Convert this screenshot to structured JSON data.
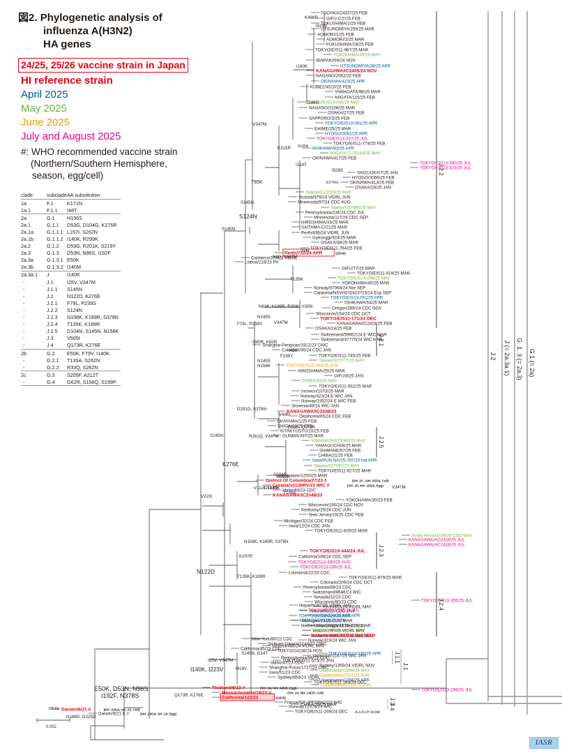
{
  "figure": {
    "title_prefix": "図2.",
    "title_lines": [
      "Phylogenetic analysis of",
      "influenza A(H3N2)",
      "HA genes"
    ]
  },
  "legend": {
    "vaccine_strain": "24/25, 25/26 vaccine strain in Japan",
    "hi_reference": "HI reference strain",
    "april": "April 2025",
    "may": "May 2025",
    "june": "June 2025",
    "july_aug": "July and August 2025",
    "who_note": [
      "#: WHO recommended vaccine strain",
      "(Northern/Southern Hemisphere,",
      "season, egg/cell)"
    ],
    "colors": {
      "red": "#e60012",
      "april": "#0050a0",
      "may": "#6cb33e",
      "june": "#f39800",
      "july_aug": "#e4007f",
      "black": "#231815"
    }
  },
  "clade_table": {
    "headers": [
      "clade",
      "subclade",
      "AA substitution"
    ],
    "rows": [
      {
        "clade": "1a",
        "subclade": "F.1",
        "aa": "K171N",
        "sep": false
      },
      {
        "clade": "1a.1",
        "subclade": "F.1.1",
        "aa": "I48T",
        "sep": false
      },
      {
        "clade": "2a",
        "subclade": "G.1",
        "aa": "H156S",
        "sep": true
      },
      {
        "clade": "2a.1",
        "subclade": "G.1.1",
        "aa": "D53G, D104G, K276R",
        "sep": false
      },
      {
        "clade": "2a.1a",
        "subclade": "G.1.1.1",
        "aa": "L157I, S262N",
        "sep": false
      },
      {
        "clade": "2a.1b",
        "subclade": "G.1.1.2",
        "aa": "I140K, R299K",
        "sep": false
      },
      {
        "clade": "2a.2",
        "subclade": "G.1.2",
        "aa": "D53G, R201K, S219Y",
        "sep": false
      },
      {
        "clade": "2a.3",
        "subclade": "G.1.3",
        "aa": "D53N, N96S, I192F",
        "sep": false
      },
      {
        "clade": "2a.3a",
        "subclade": "G.1.3.1",
        "aa": "E50K",
        "sep": false
      },
      {
        "clade": "2a.3b",
        "subclade": "G.1.3.2",
        "aa": "I140M",
        "sep": false
      },
      {
        "clade": "2a.3a.1",
        "subclade": "J",
        "aa": "I140K",
        "sep": true
      },
      {
        "clade": "-",
        "subclade": "J.1",
        "aa": "I25V, V347M",
        "sep": false
      },
      {
        "clade": "-",
        "subclade": "J.1.1",
        "aa": "S145N",
        "sep": false
      },
      {
        "clade": "-",
        "subclade": "J.2",
        "aa": "N122D, K276E",
        "sep": false
      },
      {
        "clade": "-",
        "subclade": "J.2.1",
        "aa": "F79L, P239S",
        "sep": false
      },
      {
        "clade": "-",
        "subclade": "J.2.2",
        "aa": "S124N",
        "sep": false
      },
      {
        "clade": "-",
        "subclade": "J.2.3",
        "aa": "N158K, K189R, S378N",
        "sep": false
      },
      {
        "clade": "-",
        "subclade": "J.2.4",
        "aa": "T135K, K189R",
        "sep": false
      },
      {
        "clade": "-",
        "subclade": "J.2.5",
        "aa": "D104N, S145N, N158K",
        "sep": false
      },
      {
        "clade": "-",
        "subclade": "J.3",
        "aa": "V505I",
        "sep": false
      },
      {
        "clade": "-",
        "subclade": "J.4",
        "aa": "Q173R, K276E",
        "sep": false
      },
      {
        "clade": "2b",
        "subclade": "G.2",
        "aa": "E50K, F79V, I140K",
        "sep": true
      },
      {
        "clade": "-",
        "subclade": "G.2.1",
        "aa": "T135A, S262N",
        "sep": false
      },
      {
        "clade": "-",
        "subclade": "G.2.2",
        "aa": "R33Q, S262N",
        "sep": false
      },
      {
        "clade": "2c",
        "subclade": "G.3",
        "aa": "S205F, A212T",
        "sep": true
      },
      {
        "clade": "-",
        "subclade": "G.4",
        "aa": "G62R, S156Q, S199P",
        "sep": false
      }
    ]
  },
  "tree": {
    "scale_bar": "0.002",
    "leaves": [
      {
        "label": "TOCHIGI/24327/25 FEB",
        "c": "k"
      },
      {
        "label": "GIFU-C/2/25 FEB",
        "c": "k"
      },
      {
        "label": "TOKUSHIMA/2/25 FEB",
        "c": "k"
      },
      {
        "label": "UTSUNOMIYA/259/25 MAR",
        "c": "k"
      },
      {
        "label": "AOMORI/1/25 FEB",
        "c": "k"
      },
      {
        "label": "AOMORI/2/25 MAR",
        "c": "k"
      },
      {
        "label": "FUKUSHIMA/16/25 FEB",
        "c": "k"
      },
      {
        "label": "TOKYO/EIS11-967/25 MAR",
        "c": "k"
      },
      {
        "label": "YOKOHAMA/49/25 MAY",
        "c": "may"
      },
      {
        "label": "IBARAKI/59/24 NOV",
        "c": "k"
      },
      {
        "label": "UTSUNOMIYA/38/25 APR",
        "c": "apr"
      },
      {
        "label": "KANAGAWA/IC2405/24 NOV",
        "c": "red"
      },
      {
        "label": "NAGANO/2082/25 FEB",
        "c": "k"
      },
      {
        "label": "OKINAWA/423/25 APR",
        "c": "apr"
      },
      {
        "label": "KOBE/24510/25 FEB",
        "c": "k"
      },
      {
        "label": "YAMAGATA/98/25 MAR",
        "c": "k"
      },
      {
        "label": "NIIGATA/115/25 FEB",
        "c": "k"
      },
      {
        "label": "TOKYO/EIS13-085/25 MAY",
        "c": "may"
      },
      {
        "label": "NAGANO/2108/25 MAR",
        "c": "k"
      },
      {
        "label": "OSAKA/27/25 FEB",
        "c": "k"
      },
      {
        "label": "SAPPORO/3/25 FEB",
        "c": "k"
      },
      {
        "label": "TOKYO/EIS13-081/25 APR",
        "c": "apr"
      },
      {
        "label": "EHIME/25/25 MAR",
        "c": "k"
      },
      {
        "label": "HYOGO/3061/25 APR",
        "c": "apr"
      },
      {
        "label": "TOKYO/EIS13-337/25 JUL",
        "c": "jul"
      },
      {
        "label": "TOKYO/EIS11-774/25 FEB",
        "c": "k"
      },
      {
        "label": "ISHIKAWA/83/25 APR",
        "c": "apr"
      },
      {
        "label": "NIIGATA-C/25144/25 MAY",
        "c": "may"
      },
      {
        "label": "OKINAWA/417/25 FEB",
        "c": "k"
      },
      {
        "label": "TOKYO/EIS13-380/25 JUL",
        "c": "jul"
      },
      {
        "label": "TOKYO/EIS13-323/25 JUL",
        "c": "jul"
      },
      {
        "label": "SHIZUOKA/7/25 JAN",
        "c": "k"
      },
      {
        "label": "HYOGO/3066/25 FEB",
        "c": "k"
      },
      {
        "label": "OKINAWA/413/25 FEB",
        "c": "k"
      },
      {
        "label": "OSAKA/19/25 JAN",
        "c": "k"
      },
      {
        "label": "Taiwan/C22020/25 MAY",
        "c": "may"
      },
      {
        "label": "Victoria/979/24 VIDRL JUN",
        "c": "k"
      },
      {
        "label": "Minnesota/97/24 CDC AUG",
        "c": "k"
      },
      {
        "label": "Taiwan/S27080/25 MAY",
        "c": "may"
      },
      {
        "label": "Pennsylvania/234/24 CDC JUL",
        "c": "k"
      },
      {
        "label": "Minnesota/117/24 CDC SEP",
        "c": "k"
      },
      {
        "label": "HIROSHIMA/33/25 MAR",
        "c": "k"
      },
      {
        "label": "SAITAMA-C/21/25 MAR",
        "c": "k"
      },
      {
        "label": "Perth/836/24 VIDRL JUN",
        "c": "k"
      },
      {
        "label": "Gyeonggi/924/25 MAR",
        "c": "k"
      },
      {
        "label": "OSAKA/38/25 MAR",
        "c": "k"
      },
      {
        "label": "TOKYO/EIS11-764/25 FEB",
        "c": "k"
      },
      {
        "label": "Perth/722/24 APR",
        "c": "vax",
        "note": "(25/26)"
      },
      {
        "label": "Canberra/373/23 VIDRL",
        "c": "k"
      },
      {
        "label": "Lisboa/216/23 Prt",
        "c": "k"
      },
      {
        "label": "GIFU/77/25 MAR",
        "c": "k"
      },
      {
        "label": "TOKYO/EIS11-919/25 MAR",
        "c": "k"
      },
      {
        "label": "TOKYO/EIS13-098/25 MAY",
        "c": "may"
      },
      {
        "label": "YOKOHAMA/40/25 MAR",
        "c": "k"
      },
      {
        "label": "Norway/07066/24 Nor SEP",
        "c": "k"
      },
      {
        "label": "Catalonia/NSVH102423723/24 Esp SEP",
        "c": "k"
      },
      {
        "label": "TOKYO/EIS13-051/25 APR",
        "c": "apr"
      },
      {
        "label": "ISHIKAWA/54/25 MAR",
        "c": "k"
      },
      {
        "label": "Oregon/286/24 CDC NOV",
        "c": "k"
      },
      {
        "label": "Wisconsin/154/24 CDC OCT",
        "c": "k"
      },
      {
        "label": "TOKYO/EIS11-171/24 DEC",
        "c": "red"
      },
      {
        "label": "KANAGAWA/IC2428/25 FEB",
        "c": "k"
      },
      {
        "label": "OSAKA/24/25 FEB",
        "c": "k"
      },
      {
        "label": "Switzerland/59652/24 E WIC MAR",
        "c": "k"
      },
      {
        "label": "Switzerland/47775/24 WIC MAR",
        "c": "k"
      },
      {
        "label": "Shanghai-Fengxian/1912/23 CNIC",
        "c": "k"
      },
      {
        "label": "Colorado/06/24 CDC JAN",
        "c": "k"
      },
      {
        "label": "TOKYO/EIS11-745/25 FEB",
        "c": "k"
      },
      {
        "label": "Taiwan/S27077/25 MAY",
        "c": "may"
      },
      {
        "label": "TOKYO/EIS13-254/25 JUN",
        "c": "jun"
      },
      {
        "label": "HIROSHIMA/25/25 MAR",
        "c": "k"
      },
      {
        "label": "GIFU/8/25 JAN",
        "c": "k"
      },
      {
        "label": "CHIBA/30/25 MAY",
        "c": "may"
      },
      {
        "label": "TOKYO/EIS11-932/25 MAR",
        "c": "k"
      },
      {
        "label": "Incheon/1073/25 MAR",
        "c": "k"
      },
      {
        "label": "Norway/423/24 E WIC JAN",
        "c": "k"
      },
      {
        "label": "Norway/1952/24 E WIC FEB",
        "c": "k"
      },
      {
        "label": "Slovenia/49/24 WIC JAN",
        "c": "k"
      },
      {
        "label": "KANAGAWA/IC2338/23",
        "c": "red"
      },
      {
        "label": "Oklahoma/05/24 CDC FEB",
        "c": "k"
      },
      {
        "label": "OKAYAMA/1/25 FEB",
        "c": "k"
      },
      {
        "label": "SHIGA/13/25 FEB",
        "c": "k"
      },
      {
        "label": "KITAKYUSYU/10/25 FEB",
        "c": "k"
      },
      {
        "label": "GUNMA/397/25 MAR",
        "c": "k"
      },
      {
        "label": "YAMANASHI/25088/25 MAY",
        "c": "may"
      },
      {
        "label": "YAMAGUCHI/8/25 MAR",
        "c": "k"
      },
      {
        "label": "SHIMANE/57/25 FEB",
        "c": "k"
      },
      {
        "label": "CHIBA/21/25 FEB",
        "c": "k"
      },
      {
        "label": "India/PUN NIV25-787/25 Ind APR",
        "c": "apr"
      },
      {
        "label": "Taiwan/S27097/25 MAY",
        "c": "may"
      },
      {
        "label": "TOKYO/EIS11-827/25 MAR",
        "c": "k"
      },
      {
        "label": "Ulaanbaatar/1250/25 MAR",
        "c": "k"
      },
      {
        "label": "District Of Columbia/27/23 #",
        "c": "red",
        "note": "(SH: 25 , NH: 25/26, Cell)"
      },
      {
        "label": "Croatia/10136RV/23 WIC #",
        "c": "red",
        "note": "(SH: 25, NH: 25/26, Egg)"
      },
      {
        "label": "Idaho/69/23 CDC",
        "c": "k"
      },
      {
        "label": "KANAGAWA/IC2348/23",
        "c": "red"
      },
      {
        "label": "YOKOHAMA/30/25 FEB",
        "c": "k"
      },
      {
        "label": "Wisconsin/160/24 CDC NOV",
        "c": "k"
      },
      {
        "label": "Kentucky/29/24 CDC JUN",
        "c": "k"
      },
      {
        "label": "New Jersey/16/25 CDC FEB",
        "c": "k"
      },
      {
        "label": "Michigan/32/24 CDC FEB",
        "c": "k"
      },
      {
        "label": "Iowa/12/24 CDC JAN",
        "c": "k"
      },
      {
        "label": "TOKYO/EIS11-829/25 MAR",
        "c": "k"
      },
      {
        "label": "South Africa/4109/25 CDC MAY",
        "c": "may"
      },
      {
        "label": "KANAGAWA/AC2416/25 JUL",
        "c": "jul"
      },
      {
        "label": "KANAGAWA/AC2418/25 JUL",
        "c": "jul"
      },
      {
        "label": "TOKYO/EIS10-444/24 JUL",
        "c": "red"
      },
      {
        "label": "California/166/24 CDC SEP",
        "c": "k"
      },
      {
        "label": "TOKYO/EIS13-390/25 AUG",
        "c": "jul"
      },
      {
        "label": "TOKYO/EIS13-339/25 JUL",
        "c": "jul"
      },
      {
        "label": "Louisiana/22/23 CDC",
        "c": "k"
      },
      {
        "label": "TOKYO/EIS11-879/25 MAR",
        "c": "k"
      },
      {
        "label": "Colorado/209/24 CDC OCT",
        "c": "k"
      },
      {
        "label": "Pennsylvania/89/23 CDC",
        "c": "k"
      },
      {
        "label": "Switzerland/8646/23 WIC",
        "c": "k"
      },
      {
        "label": "Nevada/32/23 CDC",
        "c": "k"
      },
      {
        "label": "Wisconsin/90/23 CDC",
        "c": "k"
      },
      {
        "label": "Perth/815/24 VIDRL MAY",
        "c": "k"
      },
      {
        "label": "Alaska/08/25 CDC JAN",
        "c": "k"
      },
      {
        "label": "TOKYO/EIS13-029/25 APR",
        "c": "apr"
      },
      {
        "label": "Michigan/73/25 CDC MAR",
        "c": "k"
      },
      {
        "label": "Netherlands/10885/24 Ned DEC",
        "c": "k"
      },
      {
        "label": "Victoria/769/25 VIDRL MAY",
        "c": "k"
      },
      {
        "label": "Netherlands/02093/24 Ned DEC",
        "c": "k"
      },
      {
        "label": "Norway/319/24 WIC JAN",
        "c": "k"
      },
      {
        "label": "Victoria/488/24 VIDRL MAY",
        "c": "k"
      },
      {
        "label": "TOKYO/24238/24 NOV",
        "c": "k"
      },
      {
        "label": "Valladolid/1187/25 WIC JAN",
        "c": "k"
      },
      {
        "label": "TOKYO/EIS11-575/25 JAN",
        "c": "k"
      },
      {
        "label": "Sydney/1359/24 VIDRL NOV",
        "c": "k"
      },
      {
        "label": "Ulaanbaatar/1898/25 MAY",
        "c": "may"
      },
      {
        "label": "Ulaanbaatar/2031/25 JUN",
        "c": "jun"
      },
      {
        "label": "Ulaanbaatar/1766/25 APR",
        "c": "apr"
      },
      {
        "label": "Ulaanbaatar/2019/25 JUN",
        "c": "jun"
      },
      {
        "label": "TOKYO/EIS13-299/25 JUL",
        "c": "jul"
      },
      {
        "label": "TOKYO/EIS13-355/25 JUL",
        "c": "jul"
      },
      {
        "label": "Nepal/N042/25 VIDRL JAN",
        "c": "k"
      },
      {
        "label": "CHIBA/29/25 MAR",
        "c": "k"
      },
      {
        "label": "TOKYO/EIS13-345/25 JUL",
        "c": "jul"
      },
      {
        "label": "KAWASAKI/19/25 APR",
        "c": "apr"
      },
      {
        "label": "YAMAGATA/111/25 APR",
        "c": "apr"
      },
      {
        "label": "Mississippi/37/25 CDC MAR",
        "c": "k"
      },
      {
        "label": "TOKYO/EIS13-137/25 MAY",
        "c": "may"
      },
      {
        "label": "KANAGAWA/AC2413/25 MAR",
        "c": "red"
      },
      {
        "label": "New York/86/22 CDC",
        "c": "k"
      },
      {
        "label": "Sichuan-Gaoxin/1144/23 CNIC",
        "c": "k"
      },
      {
        "label": "California/45/23 CDC",
        "c": "k"
      },
      {
        "label": "TOKYO/EIS13-030/25 APR",
        "c": "apr"
      },
      {
        "label": "Pennsylvania/98/23 CDC",
        "c": "k"
      },
      {
        "label": "Idaho/47/23 CDC",
        "c": "k"
      },
      {
        "label": "Shanghai-Putuo/1727/23 CNIC",
        "c": "k"
      },
      {
        "label": "Iowa/51/23 CDC",
        "c": "k"
      },
      {
        "label": "Sydney/856/23 VIDRL",
        "c": "k"
      },
      {
        "label": "TOKYO/EIS11-189/24 DEC",
        "c": "k"
      },
      {
        "label": "Thailand/8/22 #",
        "c": "red",
        "note": "(SH: 24, NH: 24/25, Egg)"
      },
      {
        "label": "Massachusetts/18/22 #",
        "c": "red",
        "note": "(SH: 24, NH: 24/25, Cell)"
      },
      {
        "label": "California/122/22",
        "c": "vax",
        "note": "(24/25)"
      },
      {
        "label": "France/IDF-IPP29542/23 WIC",
        "c": "k"
      },
      {
        "label": "Norway/12374/23 WIC",
        "c": "k"
      },
      {
        "label": "TOKYO/EIS11-246/24 DEC",
        "c": "k",
        "note": "-G.1.3.1 (= 2a.3a)"
      },
      {
        "label": "Darwin/6/21 #",
        "c": "red",
        "note": "(NH -23/24, SH -23, Cell)"
      },
      {
        "label": "Darwin/9/21 E #",
        "c": "k",
        "note": "(NH -23/24, SH -23, Egg)"
      }
    ],
    "mutations": [
      "K468R",
      "I529V",
      "I160K",
      "S144G",
      "V347M",
      "K315R",
      "S145N",
      "I214T",
      "I529S",
      "E276G",
      "T65K",
      "S145N",
      "S124N",
      "S145N",
      "S96I",
      "N8D, V347M",
      "T135K",
      "N63K, K189R, R208I, V309I",
      "N145S",
      "V347M",
      "F79L, P239S",
      "Q80R, K82R",
      "I48V",
      "F195Y",
      "N145S",
      "N158K",
      "D291G, S378N",
      "V406I",
      "E63G, Q173R",
      "R261Q, V347M",
      "N158K",
      "D104N",
      "T135A",
      "V347M",
      "S124R",
      "V112I, T135K",
      "S145N",
      "K276E",
      "V223I",
      "N158K, K189R, S378N",
      "K207R",
      "T135K, K189R",
      "N122D",
      "S145N, I214T",
      "I25V, V347M",
      "I418V",
      "I140K, I223V",
      "E50K, D53N, N96S, I192F, N378S",
      "Q173R, K276E",
      "D53G",
      "N186D, G225D"
    ],
    "clade_brackets": [
      {
        "label": "J.2.2"
      },
      {
        "label": "J.2.1"
      },
      {
        "label": "J.2.5"
      },
      {
        "label": "J.2.3"
      },
      {
        "label": "J.2.4"
      },
      {
        "label": "J.1.1"
      },
      {
        "label": "J.1"
      },
      {
        "label": "J.3"
      },
      {
        "label": "J.4"
      },
      {
        "label": "J.2"
      },
      {
        "label": "J (= 2a.3a.1)"
      },
      {
        "label": "G. 1. 3 (= 2a.3)"
      },
      {
        "label": "G.1 (= 2a)"
      }
    ]
  },
  "watermark": "IASR"
}
